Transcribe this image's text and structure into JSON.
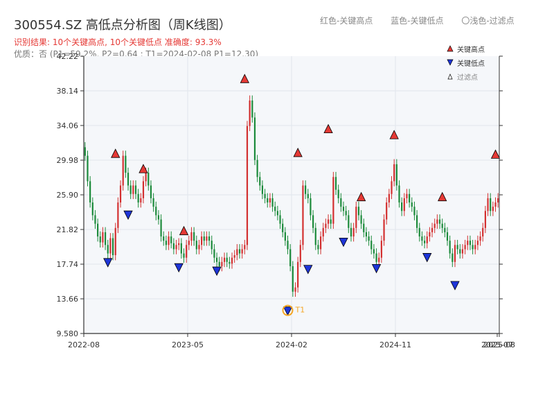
{
  "header": {
    "title": "300554.SZ 高低点分析图（周K线图）",
    "result_line": "识别结果: 10个关键高点, 10个关键低点  准确度: 93.3%",
    "quality_line": "优质：否 (P1=59.2%, P2=0.64 ; T1=2024-02-08 P1=12.30)",
    "legend_top": [
      "红色-关键高点",
      "蓝色-关键低点",
      "〇浅色-过滤点"
    ]
  },
  "legend_box": {
    "high": "关键高点",
    "low": "关键低点",
    "filtered": "过滤点"
  },
  "colors": {
    "up": "#d32f2f",
    "down": "#1b8a3a",
    "high_marker": "#e53935",
    "low_marker": "#1e35d8",
    "t1_ring": "#f5a623",
    "plot_bg": "#f5f7fa"
  },
  "chart_data": {
    "type": "candlestick",
    "y_ticks": [
      "42.22",
      "38.14",
      "34.06",
      "29.98",
      "25.90",
      "21.82",
      "17.74",
      "13.66",
      "9.580"
    ],
    "ylim": [
      9.58,
      42.22
    ],
    "x_ticks": [
      "2022-08",
      "2023-05",
      "2024-02",
      "2024-11",
      "2025-07",
      "2025-08"
    ],
    "t1_label": "T1",
    "closes": [
      30.5,
      27.5,
      25.0,
      23.5,
      22.5,
      21.0,
      20.3,
      21.5,
      20.0,
      19.0,
      20.8,
      18.8,
      22.0,
      25.0,
      27.0,
      30.5,
      28.5,
      27.0,
      26.0,
      27.0,
      26.0,
      25.0,
      25.5,
      27.5,
      28.5,
      27.0,
      25.5,
      24.5,
      23.5,
      23.0,
      21.0,
      20.5,
      20.0,
      21.0,
      20.2,
      19.5,
      20.0,
      20.2,
      19.0,
      18.5,
      20.0,
      20.5,
      21.5,
      20.5,
      19.5,
      20.0,
      21.0,
      20.5,
      21.0,
      20.5,
      19.5,
      18.5,
      18.0,
      17.5,
      18.0,
      18.5,
      18.0,
      17.8,
      18.5,
      18.8,
      19.5,
      19.0,
      19.5,
      20.0,
      34.0,
      37.0,
      35.0,
      30.0,
      28.0,
      27.0,
      26.0,
      25.5,
      25.0,
      25.5,
      24.5,
      24.0,
      23.5,
      22.5,
      21.5,
      20.5,
      19.5,
      17.5,
      14.5,
      15.0,
      18.0,
      20.0,
      27.0,
      26.0,
      25.5,
      23.5,
      22.0,
      20.0,
      19.5,
      21.0,
      22.0,
      22.5,
      23.0,
      22.5,
      28.0,
      26.5,
      25.5,
      24.5,
      24.0,
      23.5,
      22.0,
      21.0,
      22.0,
      24.5,
      23.5,
      22.5,
      21.5,
      21.0,
      20.5,
      19.5,
      19.0,
      18.0,
      18.5,
      20.5,
      23.0,
      25.0,
      26.0,
      27.5,
      29.5,
      27.0,
      25.0,
      24.0,
      25.5,
      26.0,
      25.0,
      24.5,
      23.5,
      22.0,
      21.0,
      20.5,
      20.2,
      21.0,
      21.5,
      22.0,
      22.5,
      23.0,
      22.5,
      22.0,
      21.5,
      20.5,
      19.0,
      18.0,
      20.0,
      19.5,
      19.0,
      19.5,
      20.0,
      20.5,
      20.0,
      19.5,
      20.0,
      20.5,
      21.0,
      22.0,
      24.0,
      25.5,
      24.0,
      24.5,
      25.0,
      25.5
    ],
    "highs": [
      {
        "index": 12,
        "value": 30.7
      },
      {
        "index": 23,
        "value": 28.9
      },
      {
        "index": 39,
        "value": 21.6
      },
      {
        "index": 63,
        "value": 39.5
      },
      {
        "index": 84,
        "value": 30.8
      },
      {
        "index": 96,
        "value": 33.6
      },
      {
        "index": 109,
        "value": 25.6
      },
      {
        "index": 122,
        "value": 32.9
      },
      {
        "index": 141,
        "value": 25.6
      },
      {
        "index": 162,
        "value": 30.6
      }
    ],
    "lows": [
      {
        "index": 9,
        "value": 18.0
      },
      {
        "index": 17,
        "value": 23.6
      },
      {
        "index": 37,
        "value": 17.4
      },
      {
        "index": 52,
        "value": 17.0
      },
      {
        "index": 80,
        "value": 12.3
      },
      {
        "index": 88,
        "value": 17.2
      },
      {
        "index": 102,
        "value": 20.4
      },
      {
        "index": 115,
        "value": 17.3
      },
      {
        "index": 135,
        "value": 18.6
      },
      {
        "index": 146,
        "value": 15.3
      }
    ],
    "t1_index": 80
  }
}
